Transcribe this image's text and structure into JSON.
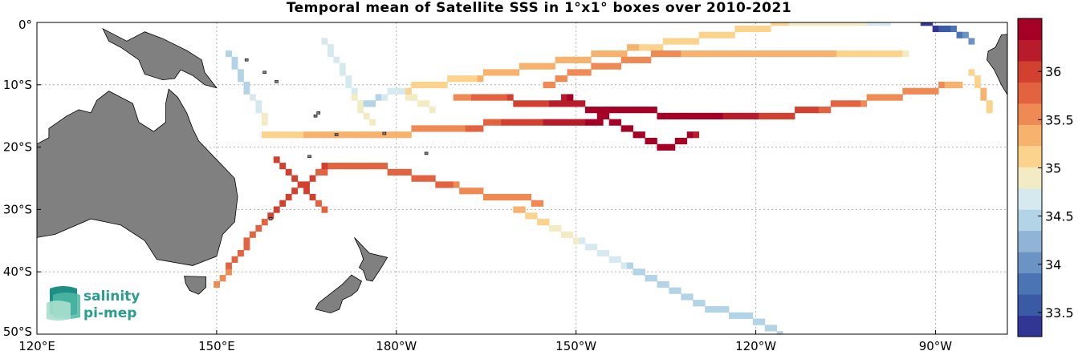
{
  "title": "Temporal mean of Satellite SSS in 1°x1° boxes over 2010-2021",
  "logo": {
    "line1": "salinity",
    "line2": "pi-mep"
  },
  "map": {
    "lon_range": [
      120,
      282
    ],
    "lat_range": [
      -50,
      0
    ],
    "lon_ticks": [
      {
        "lon": 120,
        "label": "120°E"
      },
      {
        "lon": 150,
        "label": "150°E"
      },
      {
        "lon": 180,
        "label": "180°W"
      },
      {
        "lon": 210,
        "label": "150°W"
      },
      {
        "lon": 240,
        "label": "120°W"
      },
      {
        "lon": 270,
        "label": "90°W"
      }
    ],
    "lat_ticks": [
      {
        "lat": 0,
        "label": "0°"
      },
      {
        "lat": -10,
        "label": "10°S"
      },
      {
        "lat": -20,
        "label": "20°S"
      },
      {
        "lat": -30,
        "label": "30°S"
      },
      {
        "lat": -40,
        "label": "40°S"
      },
      {
        "lat": -50,
        "label": "50°S"
      }
    ],
    "grid": true,
    "land_color": "#808080",
    "land_names": [
      "australia",
      "new-guinea",
      "new-zealand-north",
      "new-zealand-south",
      "tasmania",
      "south-america"
    ]
  },
  "colorbar": {
    "min": 33.25,
    "max": 36.55,
    "ticks": [
      "33.5",
      "34",
      "34.5",
      "35",
      "35.5",
      "36"
    ],
    "colors": [
      "#313695",
      "#3b5aa6",
      "#4a74b4",
      "#6b94c4",
      "#90b4d6",
      "#b3d3e6",
      "#d6e9ef",
      "#f2ebc4",
      "#fbd38c",
      "#f7b26e",
      "#ef8a55",
      "#e3623f",
      "#d2402f",
      "#b81c2b",
      "#a50026"
    ]
  },
  "chart_data": {
    "type": "heatmap",
    "title": "Temporal mean of Satellite SSS in 1°x1° boxes over 2010-2021",
    "xlabel": "",
    "ylabel": "",
    "value_range": [
      33.25,
      36.55
    ],
    "colorbar_ticks": [
      33.5,
      34,
      34.5,
      35,
      35.5,
      36
    ],
    "tracks": [
      {
        "lon": [
          150,
          153,
          156,
          159,
          162,
          166,
          170
        ],
        "lat": [
          -42,
          -38,
          -34,
          -31,
          -28,
          -25,
          -23
        ],
        "sss": [
          35.6,
          35.7,
          35.8,
          35.9,
          35.9,
          35.9,
          35.8
        ]
      },
      {
        "lon": [
          160,
          161,
          162,
          163,
          164,
          165,
          166,
          167,
          168
        ],
        "lat": [
          -22,
          -23,
          -24,
          -25,
          -26,
          -27,
          -28,
          -29,
          -30
        ],
        "sss": [
          35.9,
          35.95,
          36.0,
          36.0,
          35.95,
          35.9,
          35.9,
          35.85,
          35.8
        ]
      },
      {
        "lon": [
          158,
          163,
          168,
          174,
          180,
          186,
          192,
          198,
          204,
          210,
          214
        ],
        "lat": [
          -18,
          -18,
          -18,
          -18,
          -18,
          -17,
          -17,
          -16,
          -16,
          -16,
          -16
        ],
        "sss": [
          35.1,
          35.2,
          35.3,
          35.3,
          35.4,
          35.5,
          35.7,
          35.9,
          36.1,
          36.3,
          36.4
        ]
      },
      {
        "lon": [
          152,
          153,
          154,
          155,
          156,
          157,
          158
        ],
        "lat": [
          -5,
          -7,
          -9,
          -11,
          -12,
          -14,
          -16
        ],
        "sss": [
          34.5,
          34.4,
          34.4,
          34.5,
          34.6,
          34.7,
          34.9
        ]
      },
      {
        "lon": [
          168,
          170,
          172,
          174,
          176
        ],
        "lat": [
          -3,
          -6,
          -10,
          -14,
          -16
        ],
        "sss": [
          34.6,
          34.7,
          34.7,
          34.9,
          35.0
        ]
      },
      {
        "lon": [
          174,
          176,
          178,
          180,
          182,
          184,
          186
        ],
        "lat": [
          -14,
          -13,
          -12,
          -11,
          -12,
          -13,
          -14
        ],
        "sss": [
          34.6,
          34.5,
          34.6,
          34.7,
          34.8,
          34.8,
          34.9
        ]
      },
      {
        "lon": [
          180,
          186,
          192,
          198,
          204,
          210,
          216,
          222,
          228,
          234,
          240,
          246,
          252,
          258,
          262
        ],
        "lat": [
          -11,
          -10,
          -9,
          -8,
          -7,
          -6,
          -5,
          -4,
          -3,
          -2,
          -1,
          0,
          0,
          0,
          0
        ],
        "sss": [
          35.1,
          35.2,
          35.2,
          35.3,
          35.3,
          35.3,
          35.3,
          35.2,
          35.2,
          35.2,
          35.1,
          35.0,
          34.9,
          34.8,
          34.7
        ]
      },
      {
        "lon": [
          205,
          210,
          215,
          220,
          225,
          230,
          235,
          240,
          245,
          250,
          255,
          260,
          265
        ],
        "lat": [
          -10,
          -8,
          -7,
          -6,
          -5,
          -5,
          -5,
          -5,
          -5,
          -5,
          -5,
          -5,
          -5
        ],
        "sss": [
          35.6,
          35.6,
          35.5,
          35.5,
          35.5,
          35.4,
          35.4,
          35.4,
          35.3,
          35.3,
          35.2,
          35.1,
          35.0
        ]
      },
      {
        "lon": [
          190,
          196,
          202,
          208,
          214,
          220,
          226,
          232,
          238,
          244,
          250,
          256,
          262,
          268,
          274
        ],
        "lat": [
          -12,
          -12,
          -13,
          -13,
          -14,
          -14,
          -15,
          -15,
          -15,
          -15,
          -14,
          -13,
          -12,
          -11,
          -10
        ],
        "sss": [
          35.6,
          35.8,
          36.0,
          36.2,
          36.4,
          36.5,
          36.5,
          36.4,
          36.2,
          36.0,
          35.9,
          35.7,
          35.6,
          35.5,
          35.4
        ]
      },
      {
        "lon": [
          208,
          210,
          212,
          214,
          216,
          218,
          220,
          222,
          224,
          226,
          228,
          230
        ],
        "lat": [
          -12,
          -13,
          -14,
          -15,
          -16,
          -17,
          -18,
          -19,
          -20,
          -20,
          -19,
          -18
        ],
        "sss": [
          36.3,
          36.4,
          36.4,
          36.5,
          36.5,
          36.5,
          36.5,
          36.5,
          36.4,
          36.4,
          36.4,
          36.3
        ],
        "note": ""
      },
      {
        "lon": [
          168,
          172,
          176,
          180,
          184,
          188,
          192,
          196,
          200,
          204
        ],
        "lat": [
          -23,
          -23,
          -23,
          -24,
          -25,
          -26,
          -27,
          -28,
          -28,
          -29
        ],
        "sss": [
          35.9,
          35.8,
          35.8,
          35.8,
          35.7,
          35.7,
          35.6,
          35.6,
          35.5,
          35.5
        ]
      },
      {
        "lon": [
          200,
          202,
          204,
          206,
          208,
          210,
          212,
          214,
          216,
          218,
          220,
          222,
          224,
          226,
          228,
          230,
          232,
          234,
          236,
          238,
          240,
          242,
          244
        ],
        "lat": [
          -30,
          -31,
          -32,
          -33,
          -34,
          -35,
          -36,
          -37,
          -38,
          -39,
          -40,
          -41,
          -42,
          -43,
          -44,
          -45,
          -46,
          -46,
          -47,
          -47,
          -48,
          -49,
          -50
        ],
        "sss": [
          35.3,
          35.2,
          35.1,
          35.0,
          34.9,
          34.8,
          34.7,
          34.6,
          34.6,
          34.6,
          34.5,
          34.5,
          34.5,
          34.5,
          34.5,
          34.4,
          34.4,
          34.4,
          34.4,
          34.4,
          34.4,
          34.4,
          34.4
        ]
      },
      {
        "lon": [
          268,
          270,
          272,
          274,
          276
        ],
        "lat": [
          0,
          -1,
          -1,
          -2,
          -3
        ],
        "sss": [
          33.4,
          33.4,
          33.6,
          33.8,
          34.1
        ]
      },
      {
        "lon": [
          276,
          277,
          278,
          279
        ],
        "lat": [
          -8,
          -10,
          -12,
          -14
        ],
        "sss": [
          35.1,
          35.2,
          35.3,
          35.1
        ]
      }
    ]
  }
}
